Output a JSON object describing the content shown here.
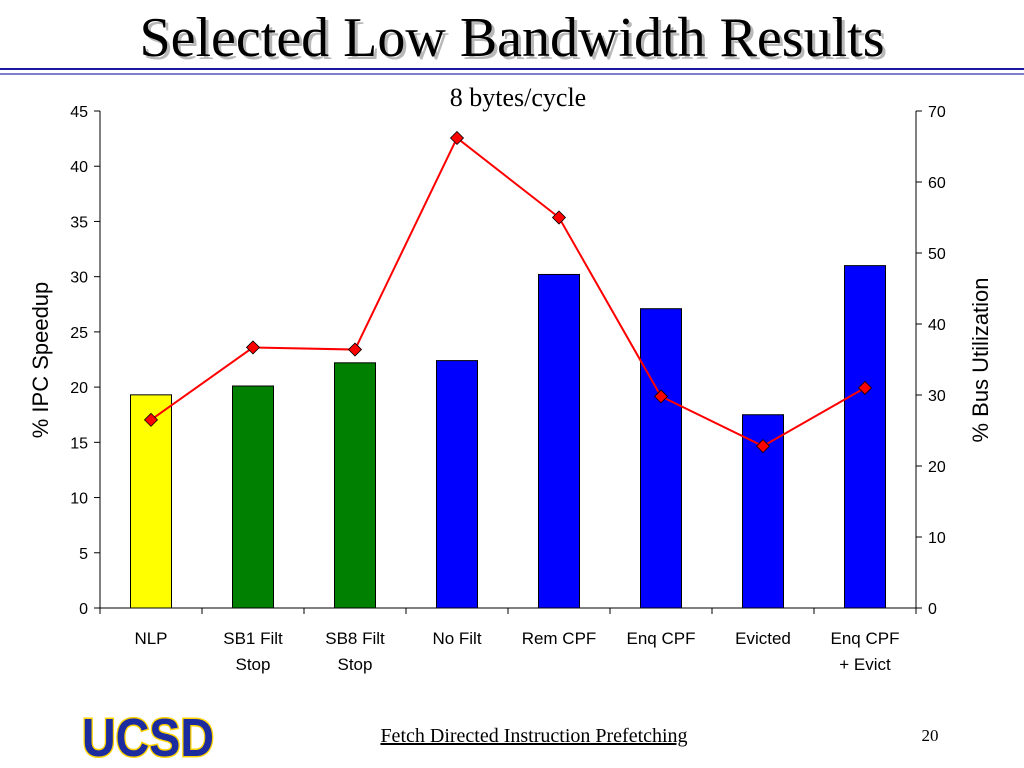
{
  "slide": {
    "title": "Selected Low Bandwidth Results",
    "footer": "Fetch Directed Instruction Prefetching",
    "page_number": "20",
    "logo_text": "UCSD",
    "colors": {
      "rule_top": "#1a1aa0",
      "rule_bottom": "#7f7fd0",
      "logo_fill": "#1c2c9e",
      "logo_outline": "#ffd400"
    }
  },
  "chart_data": {
    "type": "bar",
    "title": "8 bytes/cycle",
    "ylabel": "% IPC Speedup",
    "y2label": "% Bus Utilization",
    "ylim": [
      0,
      45
    ],
    "y2lim": [
      0,
      70
    ],
    "yticks": [
      0,
      5,
      10,
      15,
      20,
      25,
      30,
      35,
      40,
      45
    ],
    "y2ticks": [
      0,
      10,
      20,
      30,
      40,
      50,
      60,
      70
    ],
    "grid": false,
    "legend": "none",
    "categories": [
      [
        "NLP"
      ],
      [
        "SB1 Filt",
        "Stop"
      ],
      [
        "SB8 Filt",
        "Stop"
      ],
      [
        "No Filt"
      ],
      [
        "Rem CPF"
      ],
      [
        "Enq CPF"
      ],
      [
        "Evicted"
      ],
      [
        "Enq CPF",
        "+ Evict"
      ]
    ],
    "series": [
      {
        "axis": "left",
        "kind": "bar",
        "values": [
          19.3,
          20.1,
          22.2,
          22.4,
          30.2,
          27.1,
          17.5,
          31.0
        ],
        "colors": [
          "#ffff00",
          "#008000",
          "#008000",
          "#0000ff",
          "#0000ff",
          "#0000ff",
          "#0000ff",
          "#0000ff"
        ]
      },
      {
        "axis": "right",
        "kind": "line",
        "color": "#ff0000",
        "marker": "diamond",
        "values": [
          26.5,
          36.7,
          36.4,
          66.2,
          55.0,
          29.8,
          22.8,
          31.0
        ]
      }
    ]
  }
}
